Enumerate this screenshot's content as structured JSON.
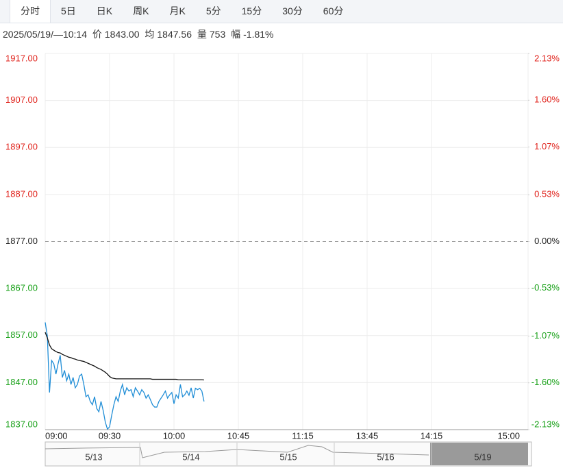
{
  "tabs": [
    "分时",
    "5日",
    "日K",
    "周K",
    "月K",
    "5分",
    "15分",
    "30分",
    "60分"
  ],
  "info": {
    "time": "2025/05/19/—10:14",
    "price_label": "价",
    "price": "1843.00",
    "avg_label": "均",
    "avg": "1847.56",
    "volume_label": "量",
    "volume": "753",
    "change_label": "幅",
    "change": "-1.81%"
  },
  "chart_data": {
    "type": "line",
    "x": [
      0,
      1,
      2,
      3,
      4,
      5,
      6,
      7,
      8,
      9,
      10,
      11,
      12,
      13,
      14,
      15,
      16,
      17,
      18,
      19,
      20,
      21,
      22,
      23,
      24,
      25,
      26,
      27,
      28,
      29,
      30,
      31,
      32,
      33,
      34,
      35,
      36,
      37,
      38,
      39,
      40,
      41,
      42,
      43,
      44,
      45,
      46,
      47,
      48,
      49,
      50,
      51,
      52,
      53,
      54,
      55,
      56,
      57,
      58,
      59,
      60,
      61,
      62,
      63,
      64,
      65,
      66,
      67,
      68,
      69,
      70,
      71,
      72,
      73,
      74
    ],
    "series": [
      {
        "name": "价",
        "color": "#1f8dd6",
        "values": [
          1859.8,
          1856.9,
          1844.9,
          1851.7,
          1851.0,
          1848.8,
          1851.0,
          1852.8,
          1848.1,
          1849.6,
          1847.4,
          1848.8,
          1846.6,
          1848.1,
          1845.9,
          1846.6,
          1848.4,
          1848.8,
          1846.6,
          1844.0,
          1844.4,
          1843.0,
          1842.3,
          1844.0,
          1841.5,
          1840.8,
          1843.0,
          1841.1,
          1838.6,
          1837.1,
          1837.6,
          1840.1,
          1842.3,
          1844.0,
          1843.0,
          1845.2,
          1846.6,
          1844.4,
          1845.9,
          1845.2,
          1845.5,
          1844.0,
          1845.9,
          1845.2,
          1844.4,
          1845.5,
          1844.9,
          1843.7,
          1844.4,
          1843.4,
          1842.3,
          1841.8,
          1841.8,
          1843.0,
          1843.7,
          1844.4,
          1845.2,
          1843.7,
          1844.4,
          1844.9,
          1842.5,
          1844.4,
          1843.7,
          1846.6,
          1844.0,
          1844.4,
          1845.2,
          1844.3,
          1845.9,
          1843.7,
          1845.8,
          1845.5,
          1845.8,
          1845.2,
          1843.0
        ]
      },
      {
        "name": "均",
        "color": "#111111",
        "values": [
          1857.7,
          1856.5,
          1855.0,
          1854.2,
          1853.9,
          1853.6,
          1853.4,
          1853.3,
          1853.0,
          1852.8,
          1852.6,
          1852.4,
          1852.3,
          1852.1,
          1852.0,
          1851.8,
          1851.7,
          1851.6,
          1851.5,
          1851.3,
          1851.1,
          1850.9,
          1850.7,
          1850.5,
          1850.2,
          1850.0,
          1849.8,
          1849.5,
          1849.2,
          1848.8,
          1848.3,
          1848.0,
          1847.9,
          1847.8,
          1847.8,
          1847.8,
          1847.8,
          1847.8,
          1847.8,
          1847.8,
          1847.8,
          1847.8,
          1847.8,
          1847.8,
          1847.8,
          1847.8,
          1847.8,
          1847.8,
          1847.8,
          1847.8,
          1847.7,
          1847.7,
          1847.7,
          1847.7,
          1847.7,
          1847.7,
          1847.7,
          1847.7,
          1847.7,
          1847.7,
          1847.7,
          1847.7,
          1847.6,
          1847.6,
          1847.6,
          1847.6,
          1847.6,
          1847.6,
          1847.6,
          1847.6,
          1847.6,
          1847.6,
          1847.6,
          1847.6,
          1847.56
        ]
      }
    ],
    "xlim": [
      0,
      225
    ],
    "xticks": [
      {
        "value": 0,
        "label": "09:00"
      },
      {
        "value": 30,
        "label": "09:30"
      },
      {
        "value": 60,
        "label": "10:00"
      },
      {
        "value": 90,
        "label": "10:45"
      },
      {
        "value": 120,
        "label": "11:15"
      },
      {
        "value": 150,
        "label": "13:45"
      },
      {
        "value": 180,
        "label": "14:15"
      },
      {
        "value": 225,
        "label": "15:00"
      }
    ],
    "ylim": [
      1837,
      1917
    ],
    "yticks": [
      {
        "value": 1917,
        "label": "1917.00"
      },
      {
        "value": 1907,
        "label": "1907.00"
      },
      {
        "value": 1897,
        "label": "1897.00"
      },
      {
        "value": 1887,
        "label": "1887.00"
      },
      {
        "value": 1877,
        "label": "1877.00"
      },
      {
        "value": 1867,
        "label": "1867.00"
      },
      {
        "value": 1857,
        "label": "1857.00"
      },
      {
        "value": 1847,
        "label": "1847.00"
      },
      {
        "value": 1837,
        "label": "1837.00"
      }
    ],
    "y2lim": [
      -2.13,
      2.13
    ],
    "y2ticks": [
      {
        "value": 2.13,
        "label": "2.13%"
      },
      {
        "value": 1.6,
        "label": "1.60%"
      },
      {
        "value": 1.07,
        "label": "1.07%"
      },
      {
        "value": 0.53,
        "label": "0.53%"
      },
      {
        "value": 0,
        "label": "0.00%"
      },
      {
        "value": -0.53,
        "label": "-0.53%"
      },
      {
        "value": -1.07,
        "label": "-1.07%"
      },
      {
        "value": -1.6,
        "label": "-1.60%"
      },
      {
        "value": -2.13,
        "label": "-2.13%"
      }
    ],
    "up_color": "#e0221b",
    "down_color": "#17a017",
    "grid": true,
    "navigator_dates": [
      "5/13",
      "5/14",
      "5/15",
      "5/16",
      "5/19"
    ]
  }
}
